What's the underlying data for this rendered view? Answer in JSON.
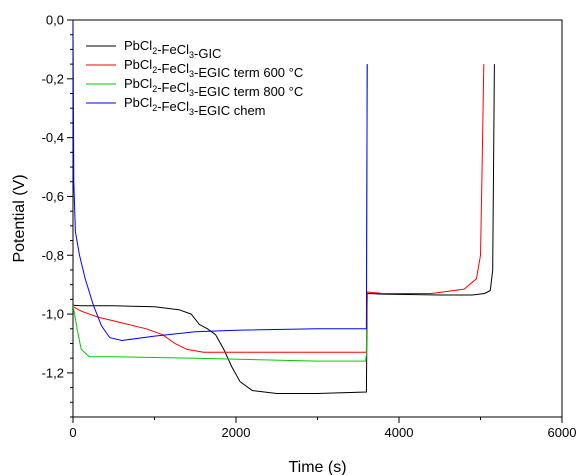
{
  "chart_data": {
    "type": "line",
    "xlabel": "Time (s)",
    "ylabel": "Potential (V)",
    "xlim": [
      0,
      6000
    ],
    "ylim": [
      -1.35,
      0.0
    ],
    "x_ticks": [
      0,
      2000,
      4000,
      6000
    ],
    "x_tick_labels": [
      "0",
      "2000",
      "4000",
      "6000"
    ],
    "y_ticks": [
      0.0,
      -0.2,
      -0.4,
      -0.6,
      -0.8,
      -1.0,
      -1.2
    ],
    "y_tick_labels": [
      "0,0",
      "-0,2",
      "-0,4",
      "-0,6",
      "-0,8",
      "-1,0",
      "-1,2"
    ],
    "grid": false,
    "legend_position": "top-left",
    "series": [
      {
        "name": "PbCl2-FeCl3-GIC",
        "legend_parts": [
          {
            "t": "PbCl"
          },
          {
            "t": "2",
            "sub": true
          },
          {
            "t": "-FeCl"
          },
          {
            "t": "3",
            "sub": true
          },
          {
            "t": "-GIC"
          }
        ],
        "color": "#000000",
        "points": [
          [
            0,
            -0.97
          ],
          [
            100,
            -0.972
          ],
          [
            500,
            -0.972
          ],
          [
            1000,
            -0.975
          ],
          [
            1300,
            -0.985
          ],
          [
            1450,
            -1.0
          ],
          [
            1550,
            -1.035
          ],
          [
            1650,
            -1.05
          ],
          [
            1750,
            -1.07
          ],
          [
            1850,
            -1.12
          ],
          [
            1950,
            -1.18
          ],
          [
            2050,
            -1.23
          ],
          [
            2200,
            -1.26
          ],
          [
            2500,
            -1.27
          ],
          [
            3000,
            -1.27
          ],
          [
            3600,
            -1.265
          ],
          [
            3610,
            -0.93
          ],
          [
            3800,
            -0.932
          ],
          [
            4500,
            -0.935
          ],
          [
            4900,
            -0.935
          ],
          [
            5050,
            -0.93
          ],
          [
            5120,
            -0.92
          ],
          [
            5150,
            -0.85
          ],
          [
            5170,
            -0.15
          ]
        ]
      },
      {
        "name": "PbCl2-FeCl3-EGIC term 600 °C",
        "legend_parts": [
          {
            "t": "PbCl"
          },
          {
            "t": "2",
            "sub": true
          },
          {
            "t": "-FeCl"
          },
          {
            "t": "3",
            "sub": true
          },
          {
            "t": "-EGIC term 600 °C"
          }
        ],
        "color": "#ff0000",
        "points": [
          [
            0,
            -0.975
          ],
          [
            100,
            -0.99
          ],
          [
            300,
            -1.01
          ],
          [
            600,
            -1.03
          ],
          [
            900,
            -1.05
          ],
          [
            1100,
            -1.07
          ],
          [
            1250,
            -1.1
          ],
          [
            1400,
            -1.12
          ],
          [
            1600,
            -1.13
          ],
          [
            2500,
            -1.13
          ],
          [
            3600,
            -1.13
          ],
          [
            3610,
            -0.925
          ],
          [
            3800,
            -0.93
          ],
          [
            4400,
            -0.93
          ],
          [
            4800,
            -0.915
          ],
          [
            4950,
            -0.88
          ],
          [
            5000,
            -0.8
          ],
          [
            5020,
            -0.5
          ],
          [
            5040,
            -0.15
          ]
        ]
      },
      {
        "name": "PbCl2-FeCl3-EGIC term 800 °C",
        "legend_parts": [
          {
            "t": "PbCl"
          },
          {
            "t": "2",
            "sub": true
          },
          {
            "t": "-FeCl"
          },
          {
            "t": "3",
            "sub": true
          },
          {
            "t": "-EGIC term 800 °C"
          }
        ],
        "color": "#00cc00",
        "points": [
          [
            0,
            -0.97
          ],
          [
            50,
            -1.05
          ],
          [
            100,
            -1.12
          ],
          [
            200,
            -1.145
          ],
          [
            500,
            -1.145
          ],
          [
            1500,
            -1.15
          ],
          [
            3000,
            -1.16
          ],
          [
            3590,
            -1.16
          ],
          [
            3600,
            -1.14
          ],
          [
            3610,
            -0.15
          ]
        ]
      },
      {
        "name": "PbCl2-FeCl3-EGIC chem",
        "legend_parts": [
          {
            "t": "PbCl"
          },
          {
            "t": "2",
            "sub": true
          },
          {
            "t": "-FeCl"
          },
          {
            "t": "3",
            "sub": true
          },
          {
            "t": "-EGIC chem"
          }
        ],
        "color": "#0000ff",
        "points": [
          [
            0,
            0.0
          ],
          [
            10,
            -0.55
          ],
          [
            30,
            -0.72
          ],
          [
            80,
            -0.8
          ],
          [
            150,
            -0.88
          ],
          [
            250,
            -0.97
          ],
          [
            350,
            -1.04
          ],
          [
            450,
            -1.08
          ],
          [
            600,
            -1.09
          ],
          [
            1000,
            -1.075
          ],
          [
            1500,
            -1.06
          ],
          [
            2000,
            -1.055
          ],
          [
            3000,
            -1.05
          ],
          [
            3600,
            -1.05
          ],
          [
            3610,
            -0.15
          ]
        ]
      }
    ]
  }
}
